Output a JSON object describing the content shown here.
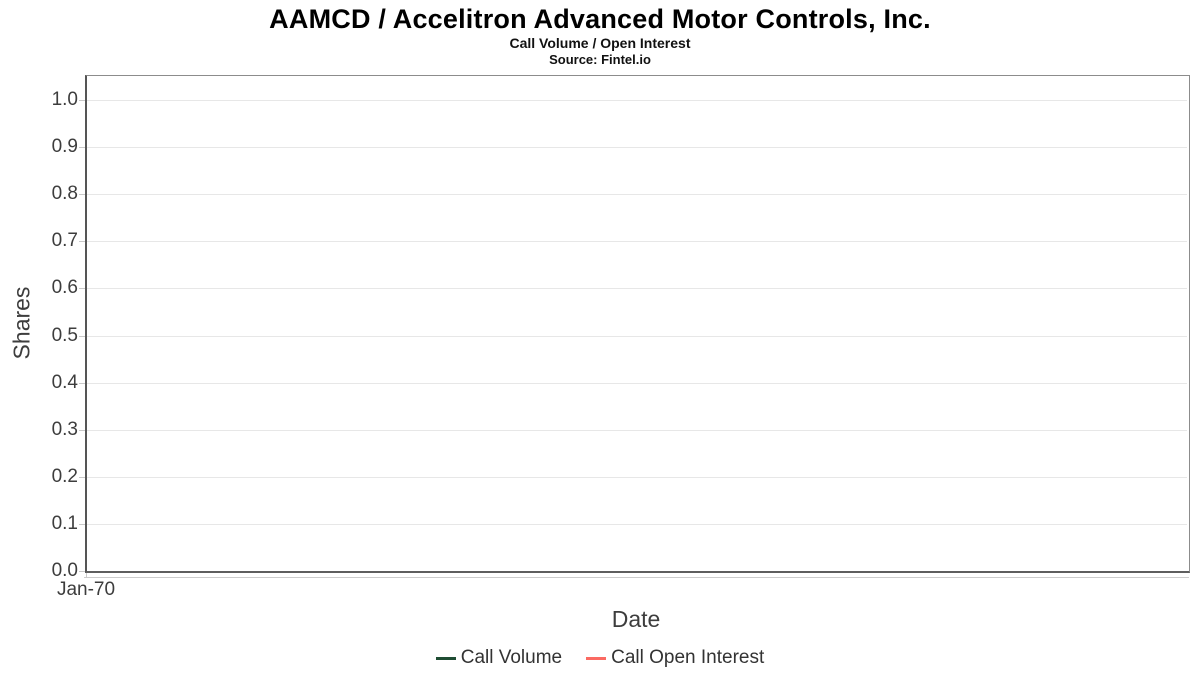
{
  "chart_data": {
    "type": "line",
    "title": "AAMCD / Accelitron Advanced Motor Controls, Inc.",
    "subtitle": "Call Volume / Open Interest",
    "source": "Source: Fintel.io",
    "xlabel": "Date",
    "ylabel": "Shares",
    "x_ticks": [
      "Jan-70"
    ],
    "y_ticks": [
      {
        "value": 0.0,
        "label": "0.0"
      },
      {
        "value": 0.1,
        "label": "0.1"
      },
      {
        "value": 0.2,
        "label": "0.2"
      },
      {
        "value": 0.3,
        "label": "0.3"
      },
      {
        "value": 0.4,
        "label": "0.4"
      },
      {
        "value": 0.5,
        "label": "0.5"
      },
      {
        "value": 0.6,
        "label": "0.6"
      },
      {
        "value": 0.7,
        "label": "0.7"
      },
      {
        "value": 0.8,
        "label": "0.8"
      },
      {
        "value": 0.9,
        "label": "0.9"
      },
      {
        "value": 1.0,
        "label": "1.0"
      }
    ],
    "ylim": [
      0,
      1.05
    ],
    "grid": "horizontal",
    "legend_position": "bottom",
    "series": [
      {
        "name": "Call Volume",
        "color": "#1f4d33",
        "x": [],
        "values": []
      },
      {
        "name": "Call Open Interest",
        "color": "#fb6a62",
        "x": [],
        "values": []
      }
    ]
  },
  "colors": {
    "grid": "#e7e7e7",
    "panel_border": "#8c8c8c",
    "axis_dark": "#555555",
    "tick": "#c9c9c9",
    "text": "#3d3d3d",
    "title": "#000000"
  }
}
